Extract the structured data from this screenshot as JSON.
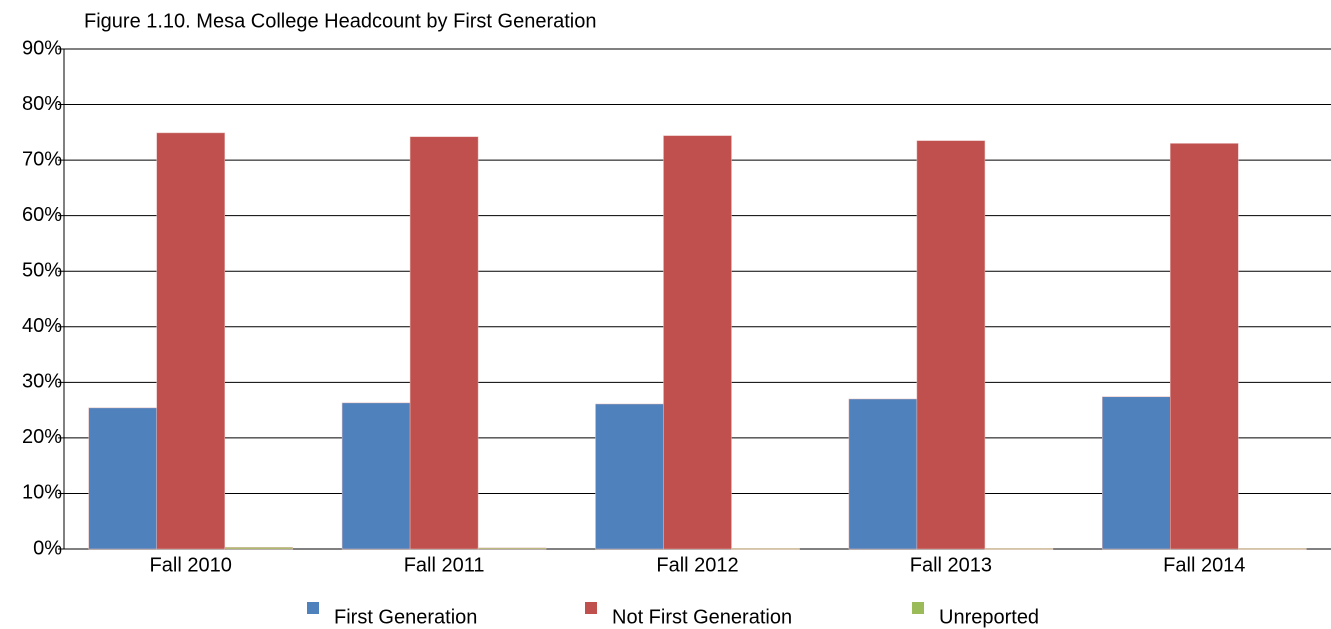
{
  "chart_data": {
    "type": "bar",
    "title": "Figure 1.10. Mesa College Headcount by First Generation",
    "categories": [
      "Fall 2010",
      "Fall 2011",
      "Fall 2012",
      "Fall 2013",
      "Fall 2014"
    ],
    "series": [
      {
        "name": "First Generation",
        "color": "#4f81bd",
        "values": [
          25.4,
          26.3,
          26.1,
          27.0,
          27.4
        ]
      },
      {
        "name": "Not First Generation",
        "color": "#c0504d",
        "values": [
          74.9,
          74.2,
          74.4,
          73.5,
          73.0
        ]
      },
      {
        "name": "Unreported",
        "color": "#9bbb59",
        "values": [
          0.3,
          0.2,
          0.1,
          0.1,
          0.1
        ]
      }
    ],
    "ylim": [
      0,
      90
    ],
    "yticks": [
      {
        "value": 0,
        "label": "0%"
      },
      {
        "value": 10,
        "label": "10%"
      },
      {
        "value": 20,
        "label": "20%"
      },
      {
        "value": 30,
        "label": "30%"
      },
      {
        "value": 40,
        "label": "40%"
      },
      {
        "value": 50,
        "label": "50%"
      },
      {
        "value": 60,
        "label": "60%"
      },
      {
        "value": 70,
        "label": "70%"
      },
      {
        "value": 80,
        "label": "80%"
      },
      {
        "value": 90,
        "label": "90%"
      }
    ],
    "grid": true,
    "legend": "bottom"
  }
}
